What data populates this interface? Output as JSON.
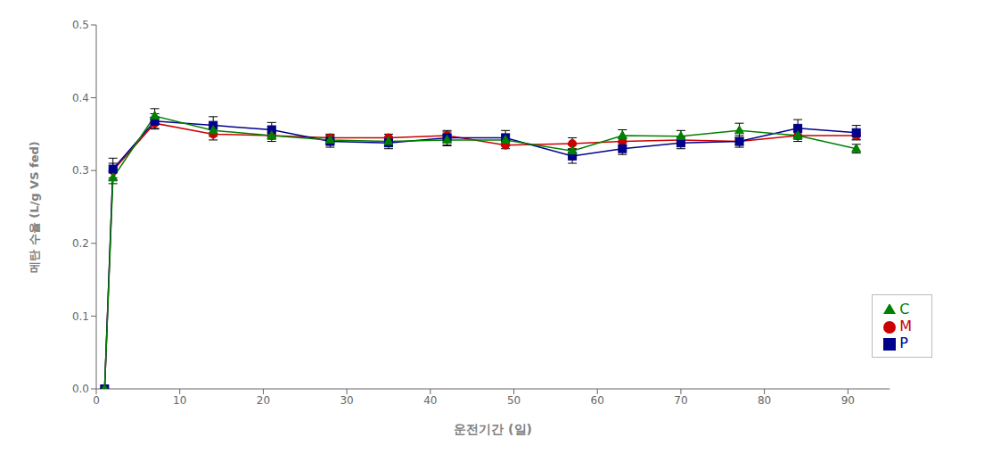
{
  "chart_data": {
    "type": "line",
    "xlabel": "운전기간 (일)",
    "ylabel": "메탄 수율 (L/g VS fed)",
    "x": [
      1,
      2,
      7,
      14,
      21,
      28,
      35,
      42,
      49,
      57,
      63,
      70,
      77,
      84,
      91
    ],
    "series": [
      {
        "name": "M",
        "color": "#cc0000",
        "marker": "circle",
        "values": [
          0.0,
          0.3,
          0.365,
          0.35,
          0.348,
          0.345,
          0.345,
          0.348,
          0.335,
          0.337,
          0.34,
          0.342,
          0.34,
          0.348,
          0.348
        ],
        "yerr": [
          0.0,
          0.01,
          0.008,
          0.008,
          0.005,
          0.005,
          0.005,
          0.005,
          0.005,
          0.008,
          0.005,
          0.005,
          0.005,
          0.005,
          0.005
        ]
      },
      {
        "name": "P",
        "color": "#00008B",
        "marker": "square",
        "values": [
          0.0,
          0.302,
          0.368,
          0.362,
          0.356,
          0.34,
          0.338,
          0.345,
          0.345,
          0.32,
          0.33,
          0.338,
          0.34,
          0.358,
          0.352
        ],
        "yerr": [
          0.0,
          0.015,
          0.01,
          0.012,
          0.01,
          0.008,
          0.008,
          0.01,
          0.01,
          0.01,
          0.008,
          0.008,
          0.008,
          0.012,
          0.01
        ]
      },
      {
        "name": "C",
        "color": "#008000",
        "marker": "triangle",
        "values": [
          0.0,
          0.29,
          0.375,
          0.355,
          0.348,
          0.342,
          0.34,
          0.342,
          0.342,
          0.327,
          0.348,
          0.347,
          0.355,
          0.348,
          0.33
        ],
        "yerr": [
          0.0,
          0.008,
          0.01,
          0.008,
          0.008,
          0.006,
          0.006,
          0.008,
          0.008,
          0.008,
          0.008,
          0.008,
          0.01,
          0.008,
          0.006
        ]
      }
    ],
    "xlim": [
      0,
      95
    ],
    "ylim": [
      0.0,
      0.5
    ],
    "xticks": [
      0,
      10,
      20,
      30,
      40,
      50,
      60,
      70,
      80,
      90
    ],
    "yticks": [
      {
        "value": 0,
        "label": "0.0"
      },
      0.1,
      0.2,
      0.3,
      0.4,
      0.5
    ],
    "grid": false,
    "legend": "lower right"
  }
}
